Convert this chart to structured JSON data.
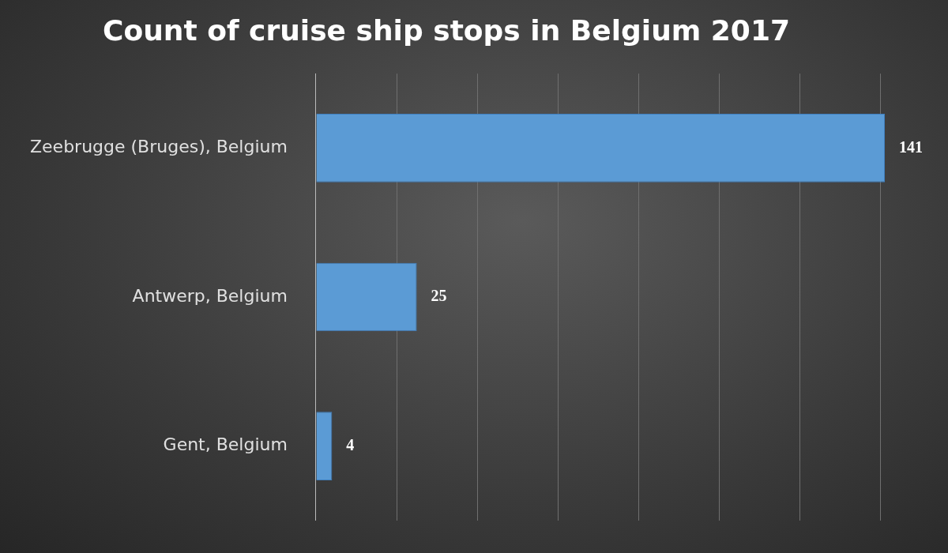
{
  "chart_data": {
    "type": "bar",
    "orientation": "horizontal",
    "title": "Count of cruise ship stops in Belgium 2017",
    "categories": [
      "Zeebrugge (Bruges), Belgium",
      "Antwerp, Belgium",
      "Gent, Belgium"
    ],
    "values": [
      141,
      25,
      4
    ],
    "color": "#5b9bd5",
    "xlim": [
      0,
      141
    ],
    "xticks": [
      {
        "value": 0,
        "label": null
      },
      {
        "value": 20,
        "label": null
      },
      {
        "value": 40,
        "label": null
      },
      {
        "value": 60,
        "label": null
      },
      {
        "value": 80,
        "label": null
      },
      {
        "value": 100,
        "label": null
      },
      {
        "value": 120,
        "label": null
      },
      {
        "value": 140,
        "label": null
      }
    ],
    "grid": "x",
    "legend": false,
    "data_labels": true,
    "tick_labels": "y"
  }
}
